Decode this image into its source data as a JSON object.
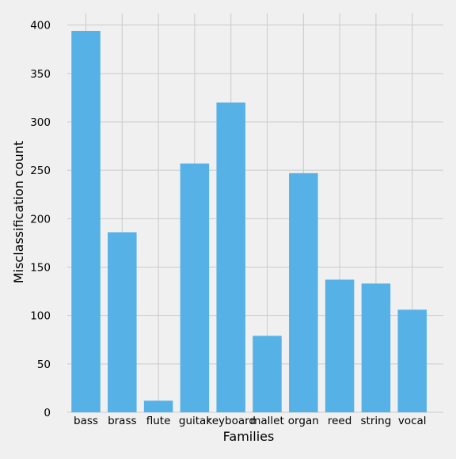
{
  "chart_data": {
    "type": "bar",
    "title": "",
    "xlabel": "Families",
    "ylabel": "Misclassification count",
    "categories": [
      "bass",
      "brass",
      "flute",
      "guitar",
      "keyboard",
      "mallet",
      "organ",
      "reed",
      "string",
      "vocal"
    ],
    "values": [
      394,
      186,
      12,
      257,
      320,
      79,
      247,
      137,
      133,
      106
    ],
    "ylim": [
      0,
      412
    ],
    "yticks": [
      0,
      50,
      100,
      150,
      200,
      250,
      300,
      350,
      400
    ],
    "grid": true,
    "bar_color": "#55b1e6",
    "background_color": "#f0f0f0",
    "grid_color": "#cbcbcb"
  }
}
